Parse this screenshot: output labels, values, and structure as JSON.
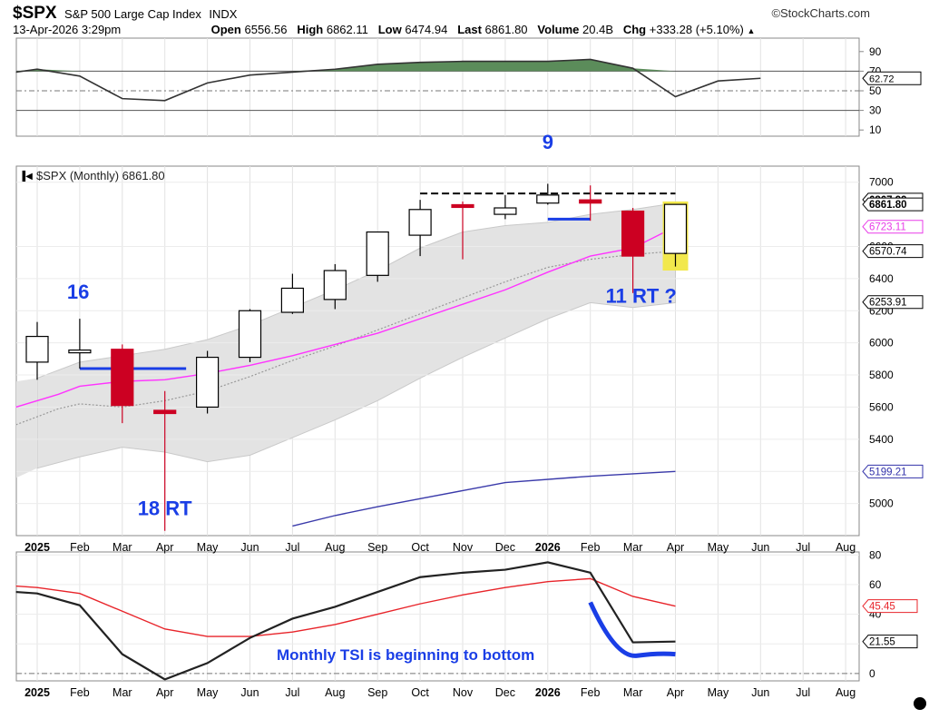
{
  "header": {
    "symbol": "$SPX",
    "name": "S&P 500 Large Cap Index",
    "exchange": "INDX",
    "brand": "©StockCharts.com",
    "datetime": "13-Apr-2026 3:29pm",
    "quote": [
      {
        "label": "Open",
        "value": "6556.56"
      },
      {
        "label": "High",
        "value": "6862.11"
      },
      {
        "label": "Low",
        "value": "6474.94"
      },
      {
        "label": "Last",
        "value": "6861.80"
      },
      {
        "label": "Volume",
        "value": "20.4B"
      },
      {
        "label": "Chg",
        "value": "+333.28 (+5.10%)"
      }
    ],
    "chg_arrow": "▲"
  },
  "chart_data": [
    {
      "type": "area",
      "panel": "top-indicator",
      "ylim": [
        0,
        100
      ],
      "yticks": [
        "90",
        "70",
        "50",
        "30",
        "10"
      ],
      "reference_lines": [
        70,
        50,
        30
      ],
      "values": [
        69,
        72,
        65,
        42,
        40,
        58,
        66,
        69,
        72,
        77,
        79,
        80,
        80,
        80,
        82,
        73,
        44,
        60,
        62.72
      ],
      "value_tag": "62.72",
      "colors": {
        "fill": "#5b8c5a",
        "line": "#333333"
      }
    },
    {
      "type": "candlestick",
      "panel": "price",
      "title": "$SPX (Monthly) 6861.80",
      "ylim": [
        4800,
        7100
      ],
      "yticks": [
        "7000",
        "6600",
        "6400",
        "6200",
        "6000",
        "5800",
        "5600",
        "5400",
        "5200",
        "5000"
      ],
      "x_ticks": [
        "2025",
        "Feb",
        "Mar",
        "Apr",
        "May",
        "Jun",
        "Jul",
        "Aug",
        "Sep",
        "Oct",
        "Nov",
        "Dec",
        "2026",
        "Feb",
        "Mar",
        "Apr",
        "May",
        "Jun",
        "Jul",
        "Aug"
      ],
      "candles": [
        {
          "month": "Jan 2025",
          "open": 5880,
          "high": 6130,
          "low": 5770,
          "close": 6040
        },
        {
          "month": "Feb 2025",
          "open": 5955,
          "high": 6150,
          "low": 5840,
          "close": 5955
        },
        {
          "month": "Mar 2025",
          "open": 5960,
          "high": 5990,
          "low": 5500,
          "close": 5610
        },
        {
          "month": "Apr 2025",
          "open": 5580,
          "high": 5700,
          "low": 4830,
          "close": 5560
        },
        {
          "month": "May 2025",
          "open": 5600,
          "high": 5950,
          "low": 5560,
          "close": 5910
        },
        {
          "month": "Jun 2025",
          "open": 5910,
          "high": 6210,
          "low": 5880,
          "close": 6200
        },
        {
          "month": "Jul 2025",
          "open": 6190,
          "high": 6430,
          "low": 6180,
          "close": 6340
        },
        {
          "month": "Aug 2025",
          "open": 6270,
          "high": 6490,
          "low": 6210,
          "close": 6450
        },
        {
          "month": "Sep 2025",
          "open": 6420,
          "high": 6690,
          "low": 6380,
          "close": 6690
        },
        {
          "month": "Oct 2025",
          "open": 6670,
          "high": 6890,
          "low": 6540,
          "close": 6830
        },
        {
          "month": "Nov 2025",
          "open": 6860,
          "high": 6880,
          "low": 6520,
          "close": 6850
        },
        {
          "month": "Dec 2025",
          "open": 6800,
          "high": 6920,
          "low": 6770,
          "close": 6840
        },
        {
          "month": "Jan 2026",
          "open": 6870,
          "high": 6990,
          "low": 6860,
          "close": 6920
        },
        {
          "month": "Feb 2026",
          "open": 6890,
          "high": 6980,
          "low": 6760,
          "close": 6870
        },
        {
          "month": "Mar 2026",
          "open": 6820,
          "high": 6840,
          "low": 6310,
          "close": 6540
        },
        {
          "month": "Apr 2026",
          "open": 6556.56,
          "high": 6862.11,
          "low": 6474.94,
          "close": 6861.8
        }
      ],
      "band_upper": [
        5780,
        5880,
        5920,
        5960,
        6020,
        6110,
        6220,
        6330,
        6450,
        6590,
        6690,
        6730,
        6750,
        6800,
        6830,
        6870
      ],
      "band_lower": [
        5220,
        5290,
        5350,
        5320,
        5260,
        5300,
        5410,
        5520,
        5640,
        5780,
        5910,
        6030,
        6150,
        6250,
        6220,
        6250
      ],
      "ma_fast": [
        5600,
        5680,
        5730,
        5760,
        5770,
        5810,
        5860,
        5920,
        5990,
        6060,
        6150,
        6240,
        6330,
        6440,
        6540,
        6590,
        6723.11
      ],
      "ma_fast_months": [
        -0.5,
        0.5,
        1,
        2,
        3,
        4,
        5,
        6,
        7,
        8,
        9,
        10,
        11,
        12,
        13,
        14,
        15
      ],
      "ma_mid": [
        5490,
        5590,
        5620,
        5600,
        5640,
        5700,
        5790,
        5890,
        5980,
        6080,
        6180,
        6280,
        6380,
        6470,
        6520,
        6550,
        6570.74
      ],
      "ma_mid_months": [
        -0.5,
        0.5,
        1,
        2,
        3,
        4,
        5,
        6,
        7,
        8,
        9,
        10,
        11,
        12,
        13,
        14,
        15
      ],
      "ma_slow": [
        4860,
        4925,
        4980,
        5030,
        5080,
        5130,
        5170,
        5199.21
      ],
      "ma_slow_months": [
        6,
        7,
        8,
        9,
        10,
        11,
        13,
        15
      ],
      "resistance_line": {
        "value": 6930,
        "from_month": 9,
        "to_month": 15
      },
      "value_tags": [
        {
          "value": "6867.99",
          "color": "#000000"
        },
        {
          "value": "6861.80",
          "color": "#000000"
        },
        {
          "value": "6723.11",
          "color": "#e83ce8"
        },
        {
          "value": "6570.74",
          "color": "#000000"
        },
        {
          "value": "6253.91",
          "color": "#000000"
        },
        {
          "value": "5199.21",
          "color": "#3333aa"
        }
      ],
      "annotations": [
        {
          "text": "16",
          "color": "#1a3ee6",
          "month": 1
        },
        {
          "text": "18 RT",
          "color": "#1a3ee6",
          "month": 3
        },
        {
          "text": "9",
          "color": "#1a3ee6",
          "month": 12
        },
        {
          "text": "11 RT ?",
          "color": "#1a3ee6",
          "month": 14
        }
      ],
      "count_lines": [
        {
          "value": 5840,
          "from_month": 1,
          "to_month": 3.5,
          "color": "#1a3ee6"
        },
        {
          "value": 6770,
          "from_month": 12,
          "to_month": 13,
          "color": "#1a3ee6"
        }
      ],
      "colors": {
        "up": "#ffffff",
        "down": "#cc0022",
        "band": "#e3e3e3",
        "ma_fast": "#ff33ff",
        "ma_mid": "#999999",
        "ma_slow": "#3a3aaa",
        "highlight": "#f2e84c"
      }
    },
    {
      "type": "line",
      "panel": "bottom-indicator",
      "name": "TSI",
      "ylim": [
        -5,
        82
      ],
      "yticks": [
        "80",
        "60",
        "40",
        "20",
        "0"
      ],
      "x_ticks": [
        "2025",
        "Feb",
        "Mar",
        "Apr",
        "May",
        "Jun",
        "Jul",
        "Aug",
        "Sep",
        "Oct",
        "Nov",
        "Dec",
        "2026",
        "Feb",
        "Mar",
        "Apr",
        "May",
        "Jun",
        "Jul",
        "Aug"
      ],
      "series": [
        {
          "values": [
            55,
            54,
            46,
            13,
            -4,
            7,
            24,
            37,
            45,
            55,
            65,
            68,
            70,
            75,
            68,
            21,
            21.55
          ],
          "color": "#222222"
        },
        {
          "values": [
            59,
            58,
            54,
            42,
            30,
            25,
            25,
            28,
            33,
            40,
            47,
            53,
            58,
            62,
            64,
            52,
            45.45
          ],
          "color": "#e8242a"
        }
      ],
      "months": [
        -0.5,
        0,
        1,
        2,
        3,
        4,
        5,
        6,
        7,
        8,
        9,
        10,
        11,
        12,
        13,
        14,
        15
      ],
      "value_tags": [
        {
          "value": "45.45",
          "color": "#e8242a"
        },
        {
          "value": "21.55",
          "color": "#000000"
        }
      ],
      "annotation": "Monthly TSI is beginning to bottom"
    }
  ]
}
